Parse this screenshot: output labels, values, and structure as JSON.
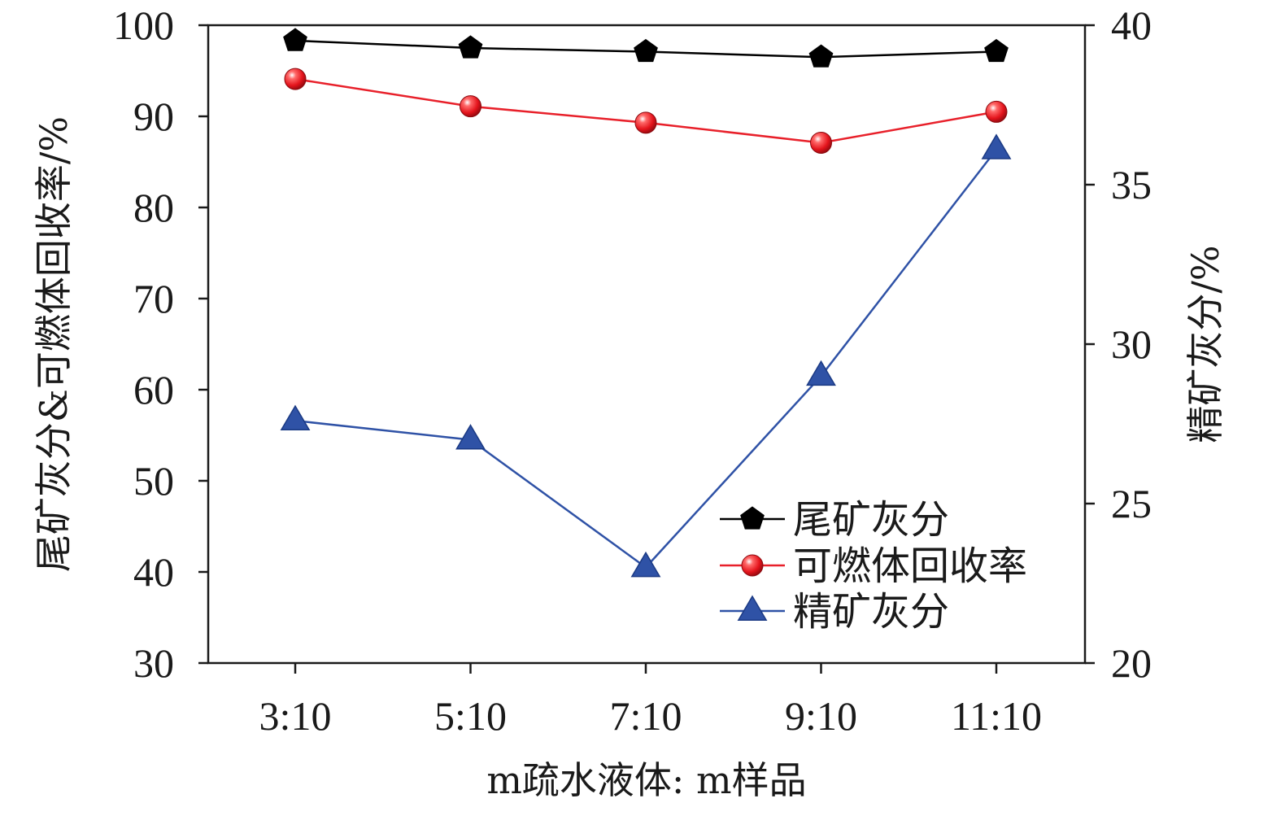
{
  "chart_data": {
    "type": "line",
    "categories": [
      "3:10",
      "5:10",
      "7:10",
      "9:10",
      "11:10"
    ],
    "xlabel": "m疏水液体: m样品",
    "ylabel_left": "尾矿灰分&可燃体回收率/%",
    "ylabel_right": "精矿灰分/%",
    "ylim_left": [
      30,
      100
    ],
    "ylim_right": [
      20,
      40
    ],
    "yticks_left": [
      30,
      40,
      50,
      60,
      70,
      80,
      90,
      100
    ],
    "yticks_right": [
      20,
      25,
      30,
      35,
      40
    ],
    "grid": false,
    "legend_position": "bottom-right",
    "series": [
      {
        "name": "尾矿灰分",
        "axis": "left",
        "color": "#000000",
        "marker": "pentagon",
        "values": [
          98.3,
          97.5,
          97.1,
          96.5,
          97.1
        ]
      },
      {
        "name": "可燃体回收率",
        "axis": "left",
        "color": "#e8202a",
        "marker": "circle",
        "values": [
          94.1,
          91.1,
          89.3,
          87.1,
          90.5
        ]
      },
      {
        "name": "精矿灰分",
        "axis": "right",
        "color": "#2f52a6",
        "marker": "triangle",
        "values": [
          27.6,
          27.0,
          23.0,
          29.0,
          36.1
        ]
      }
    ]
  }
}
